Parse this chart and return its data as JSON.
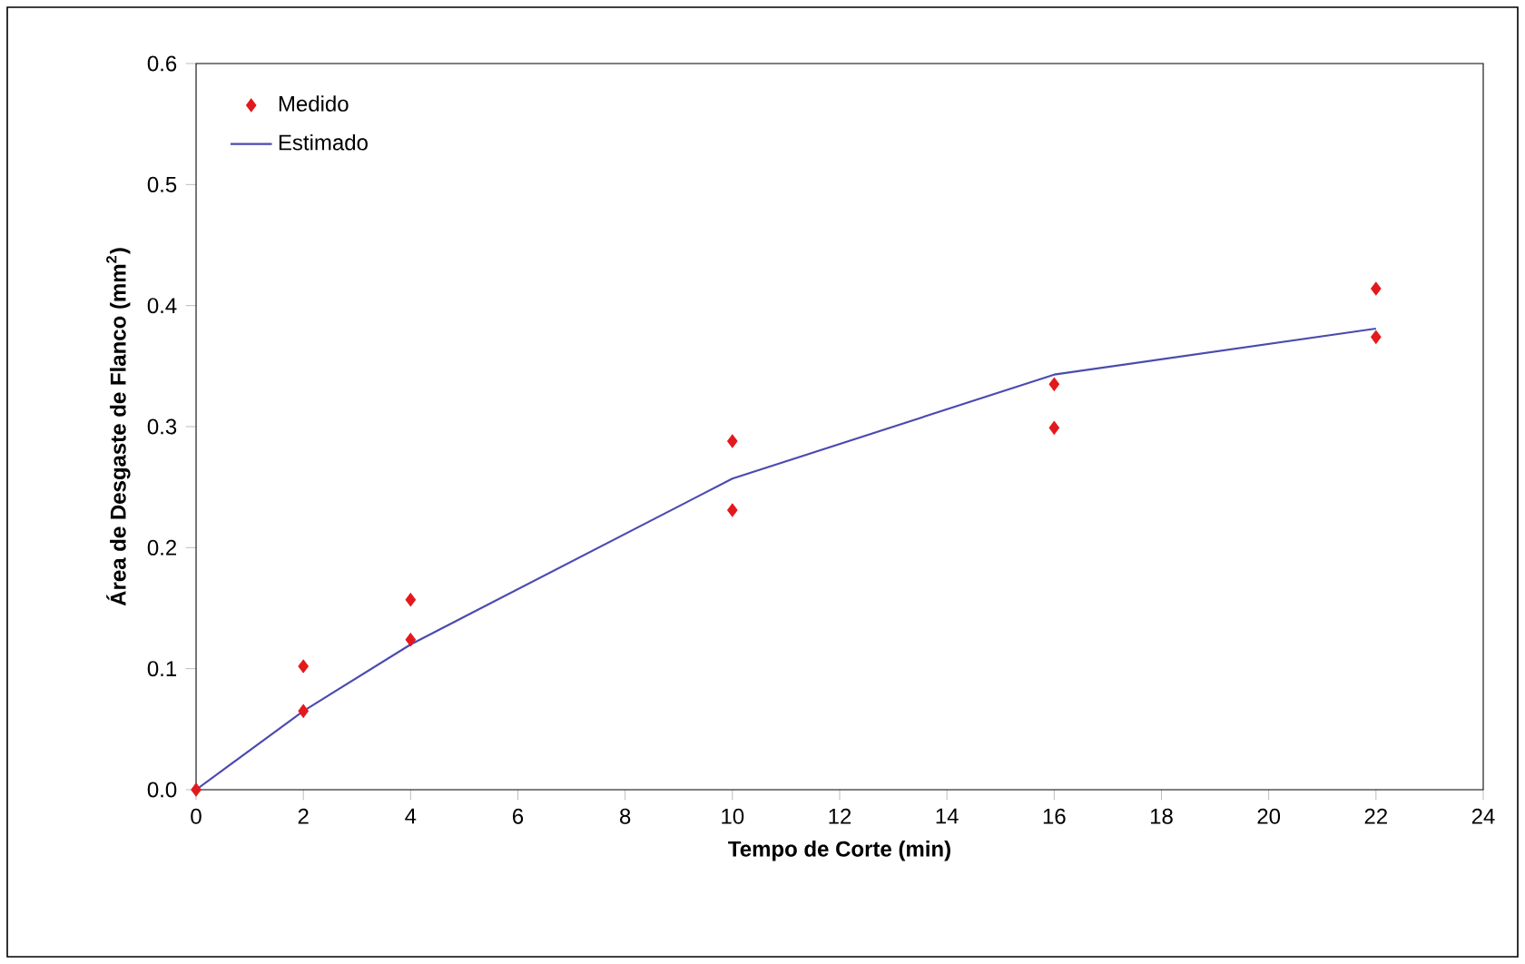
{
  "chart_data": {
    "type": "scatter",
    "xlabel": "Tempo de Corte (min)",
    "ylabel": "Área de Desgaste de Flanco (mm$^{2}$)",
    "xlim": [
      0,
      24
    ],
    "xticks": [
      0,
      2,
      4,
      6,
      8,
      10,
      12,
      14,
      16,
      18,
      20,
      22,
      24
    ],
    "ylim": [
      0,
      0.6
    ],
    "yticks": [
      {
        "value": 0,
        "label": "0.0"
      },
      {
        "value": 0.1,
        "label": "0.1"
      },
      {
        "value": 0.2,
        "label": "0.2"
      },
      {
        "value": 0.3,
        "label": "0.3"
      },
      {
        "value": 0.4,
        "label": "0.4"
      },
      {
        "value": 0.5,
        "label": "0.5"
      },
      {
        "value": 0.6,
        "label": "0.6"
      }
    ],
    "grid": false,
    "legend": "top left",
    "series": [
      {
        "name": "Medido",
        "marker": "diamond",
        "color": "#e3191c",
        "x": [
          0,
          2,
          2,
          4,
          4,
          10,
          10,
          16,
          16,
          22,
          22
        ],
        "values": [
          0,
          0.102,
          0.065,
          0.157,
          0.124,
          0.288,
          0.231,
          0.335,
          0.299,
          0.414,
          0.374
        ]
      },
      {
        "name": "Estimado",
        "type": "line",
        "marker": "none",
        "line_style": "solid",
        "color": "#4b4bb0",
        "x": [
          0,
          2,
          4,
          10,
          16,
          22
        ],
        "values": [
          0,
          0.065,
          0.12,
          0.257,
          0.343,
          0.381
        ]
      }
    ]
  }
}
